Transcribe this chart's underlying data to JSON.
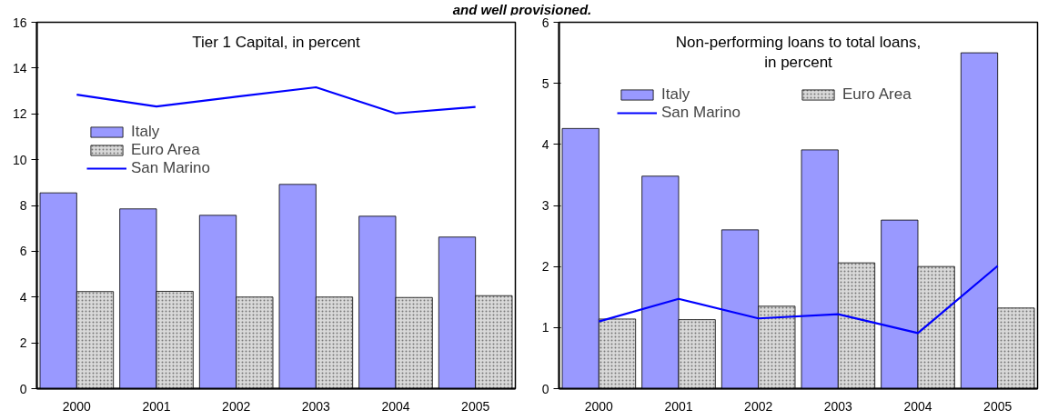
{
  "chart_data": [
    {
      "type": "bar",
      "title": "Tier 1 Capital, in percent",
      "annotations": [
        "and well provisioned."
      ],
      "categories": [
        "2000",
        "2001",
        "2002",
        "2003",
        "2004",
        "2005"
      ],
      "ylim": [
        0,
        16
      ],
      "yticks": [
        0,
        2,
        4,
        6,
        8,
        10,
        12,
        14,
        16
      ],
      "grid": false,
      "legend": "top left",
      "series": [
        {
          "name": "Italy",
          "color": "#9999ff",
          "values": [
            8.55,
            7.85,
            7.57,
            8.92,
            7.53,
            6.62
          ]
        },
        {
          "name": "Euro Area",
          "color": "#d9d9d9",
          "values": [
            4.24,
            4.25,
            4.0,
            4.0,
            3.98,
            4.06
          ]
        },
        {
          "name": "San Marino",
          "type": "line",
          "color": "#0000ff",
          "values": [
            12.84,
            12.32,
            12.75,
            13.16,
            12.02,
            12.3
          ]
        }
      ]
    },
    {
      "type": "bar",
      "title": "Non-performing loans to total loans, in percent",
      "categories": [
        "2000",
        "2001",
        "2002",
        "2003",
        "2004",
        "2005"
      ],
      "ylim": [
        0,
        6
      ],
      "yticks": [
        0,
        1,
        2,
        3,
        4,
        5,
        6
      ],
      "grid": false,
      "legend": "top",
      "series": [
        {
          "name": "Italy",
          "color": "#9999ff",
          "values": [
            4.26,
            3.48,
            2.6,
            3.91,
            2.76,
            5.5
          ]
        },
        {
          "name": "Euro Area",
          "color": "#d9d9d9",
          "values": [
            1.14,
            1.13,
            1.35,
            2.06,
            2.0,
            1.32
          ]
        },
        {
          "name": "San Marino",
          "type": "line",
          "color": "#0000ff",
          "values": [
            1.1,
            1.47,
            1.15,
            1.22,
            0.91,
            2.01
          ]
        }
      ]
    }
  ]
}
